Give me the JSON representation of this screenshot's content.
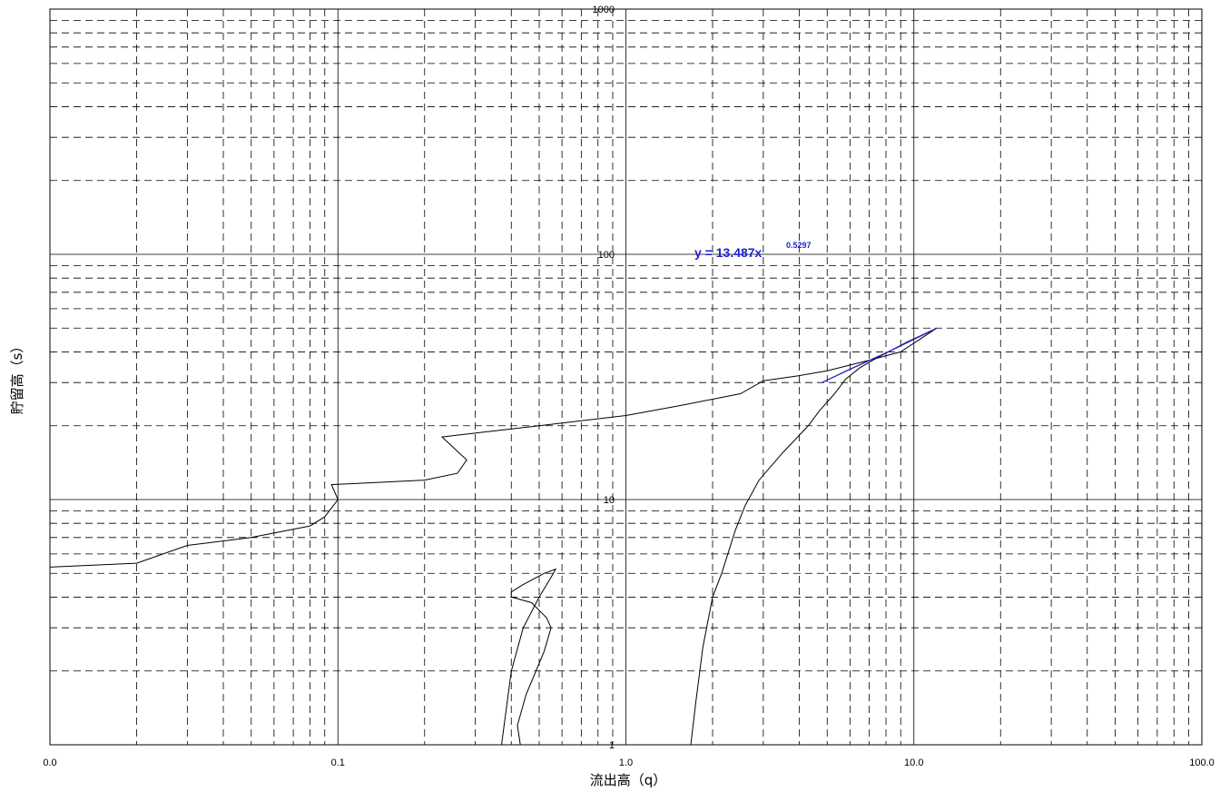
{
  "chart_data": {
    "type": "line",
    "title": "",
    "xlabel": "流出高（q）",
    "ylabel": "貯留高（s）",
    "xscale": "log",
    "yscale": "log",
    "xlim": [
      0.01,
      100
    ],
    "ylim": [
      1,
      1000
    ],
    "x_tick_labels": [
      "0.0",
      "0.1",
      "1.0",
      "10.0",
      "100.0"
    ],
    "y_tick_labels": [
      "1",
      "10",
      "100",
      "1000"
    ],
    "grid": "major solid, minor dashed",
    "legend": "none",
    "annotation": {
      "text": "y = 13.487x",
      "exponent": "0.5297",
      "color": "#1f1fd0"
    },
    "series": [
      {
        "color": "#000000",
        "points": [
          [
            0.01,
            5.3
          ],
          [
            0.02,
            5.5
          ],
          [
            0.03,
            6.5
          ],
          [
            0.05,
            7.0
          ],
          [
            0.08,
            7.8
          ],
          [
            0.09,
            8.5
          ],
          [
            0.1,
            10.0
          ],
          [
            0.095,
            11.5
          ],
          [
            0.2,
            12.0
          ],
          [
            0.26,
            12.8
          ],
          [
            0.28,
            14.5
          ],
          [
            0.23,
            18.0
          ],
          [
            0.5,
            20.0
          ],
          [
            1.0,
            22.0
          ],
          [
            1.5,
            24.0
          ],
          [
            2.5,
            27.0
          ],
          [
            3.0,
            30.5
          ],
          [
            4.0,
            32.0
          ],
          [
            5.0,
            33.5
          ],
          [
            7.0,
            37.0
          ],
          [
            9.0,
            40.0
          ],
          [
            12.0,
            50.0
          ]
        ]
      },
      {
        "color": "#000000",
        "points": [
          [
            12.0,
            50.0
          ],
          [
            9.5,
            44.0
          ],
          [
            7.5,
            38.0
          ],
          [
            6.5,
            34.5
          ],
          [
            5.8,
            31.0
          ],
          [
            5.3,
            27.0
          ],
          [
            4.7,
            23.0
          ],
          [
            4.3,
            20.0
          ],
          [
            3.5,
            15.5
          ],
          [
            2.9,
            12.0
          ],
          [
            2.6,
            9.5
          ],
          [
            2.4,
            7.5
          ],
          [
            2.15,
            5.0
          ],
          [
            2.0,
            4.0
          ],
          [
            1.85,
            2.5
          ],
          [
            1.75,
            1.5
          ],
          [
            1.68,
            1.0
          ]
        ]
      },
      {
        "color": "#000000",
        "points": [
          [
            0.43,
            1.0
          ],
          [
            0.42,
            1.2
          ],
          [
            0.45,
            1.6
          ],
          [
            0.52,
            2.4
          ],
          [
            0.55,
            3.0
          ],
          [
            0.53,
            3.3
          ],
          [
            0.47,
            3.8
          ],
          [
            0.4,
            4.0
          ],
          [
            0.4,
            4.2
          ],
          [
            0.44,
            4.5
          ],
          [
            0.52,
            5.0
          ],
          [
            0.57,
            5.2
          ],
          [
            0.56,
            5.0
          ],
          [
            0.5,
            4.0
          ],
          [
            0.44,
            3.0
          ],
          [
            0.4,
            2.0
          ],
          [
            0.37,
            1.0
          ]
        ]
      },
      {
        "name": "y = 13.487x",
        "color": "#1f1fd0",
        "points": [
          [
            4.8,
            30.0
          ],
          [
            6.0,
            34.0
          ],
          [
            8.0,
            39.6
          ],
          [
            10.0,
            45.0
          ],
          [
            12.0,
            50.0
          ]
        ]
      }
    ]
  }
}
